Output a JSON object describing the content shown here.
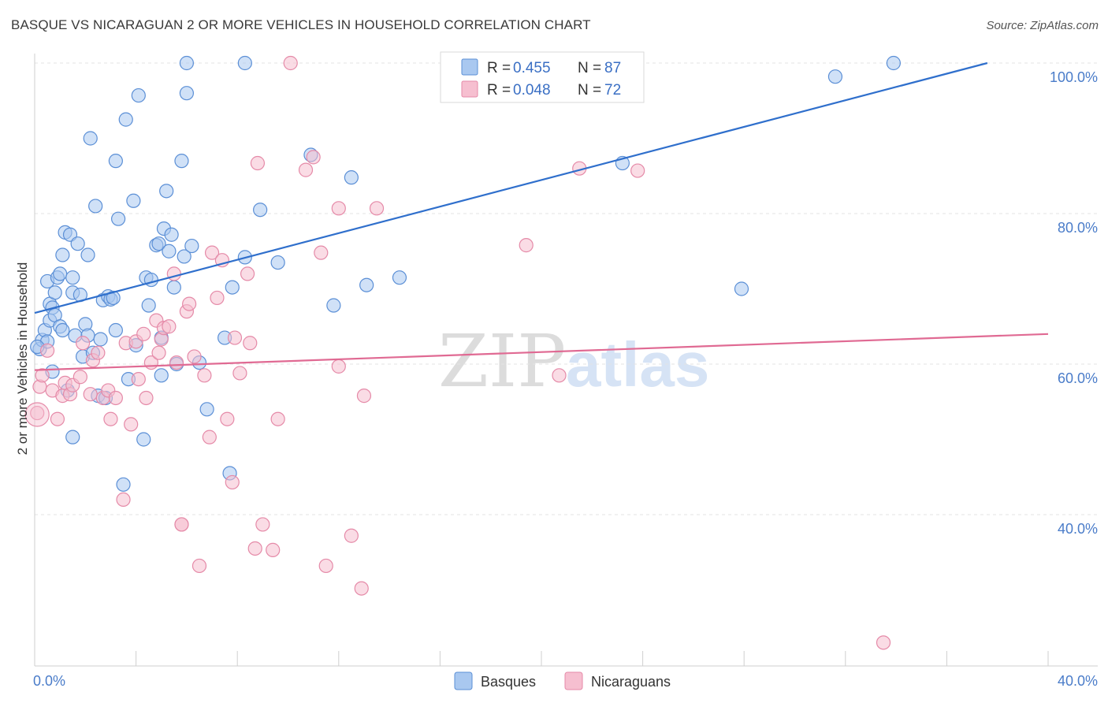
{
  "title": "BASQUE VS NICARAGUAN 2 OR MORE VEHICLES IN HOUSEHOLD CORRELATION CHART",
  "source": "Source: ZipAtlas.com",
  "watermark": {
    "zip": "ZIP",
    "atlas": "atlas"
  },
  "legend": {
    "items": [
      {
        "r_label": "R =",
        "r_value": "0.455",
        "n_label": "N =",
        "n_value": "87",
        "color": "#a9c8f0",
        "stroke": "#5b8fd6"
      },
      {
        "r_label": "R =",
        "r_value": "0.048",
        "n_label": "N =",
        "n_value": "72",
        "color": "#f6bfd0",
        "stroke": "#e58aa8"
      }
    ]
  },
  "chart_data": {
    "type": "scatter",
    "title": "BASQUE VS NICARAGUAN 2 OR MORE VEHICLES IN HOUSEHOLD CORRELATION CHART",
    "xlabel": "",
    "ylabel": "2 or more Vehicles in Household",
    "xlim": [
      0,
      40
    ],
    "ylim": [
      20,
      102
    ],
    "x_tick_labels": [
      "0.0%",
      "40.0%"
    ],
    "y_ticks": [
      40,
      60,
      80,
      100
    ],
    "y_tick_labels": [
      "40.0%",
      "60.0%",
      "80.0%",
      "100.0%"
    ],
    "grid": true,
    "series": [
      {
        "name": "Basques",
        "color": "#a9c8f0",
        "stroke": "#5b8fd6",
        "line_color": "#2f6fcc",
        "trend": {
          "x": [
            0,
            37.6
          ],
          "y": [
            66.8,
            100
          ]
        },
        "points": [
          [
            0.2,
            62.0
          ],
          [
            0.3,
            63.2
          ],
          [
            0.4,
            64.5
          ],
          [
            0.5,
            63.0
          ],
          [
            0.5,
            71.0
          ],
          [
            0.6,
            65.8
          ],
          [
            0.6,
            68.0
          ],
          [
            0.7,
            59.0
          ],
          [
            0.7,
            67.5
          ],
          [
            0.8,
            66.5
          ],
          [
            0.8,
            69.5
          ],
          [
            0.9,
            71.5
          ],
          [
            1.0,
            65.0
          ],
          [
            1.0,
            72.0
          ],
          [
            1.1,
            64.5
          ],
          [
            1.1,
            74.5
          ],
          [
            1.2,
            77.5
          ],
          [
            1.3,
            56.5
          ],
          [
            1.4,
            77.2
          ],
          [
            1.5,
            69.5
          ],
          [
            1.5,
            71.5
          ],
          [
            1.6,
            63.8
          ],
          [
            1.7,
            76.0
          ],
          [
            1.8,
            69.2
          ],
          [
            1.9,
            61.0
          ],
          [
            2.0,
            65.3
          ],
          [
            2.1,
            63.8
          ],
          [
            2.1,
            74.5
          ],
          [
            2.2,
            90.0
          ],
          [
            2.3,
            61.5
          ],
          [
            2.4,
            81.0
          ],
          [
            2.5,
            55.8
          ],
          [
            2.6,
            63.3
          ],
          [
            2.7,
            68.5
          ],
          [
            2.8,
            55.5
          ],
          [
            2.9,
            69.0
          ],
          [
            3.0,
            68.6
          ],
          [
            3.1,
            68.8
          ],
          [
            3.2,
            64.5
          ],
          [
            3.2,
            87.0
          ],
          [
            3.3,
            79.3
          ],
          [
            3.5,
            44.0
          ],
          [
            3.6,
            92.5
          ],
          [
            3.9,
            81.7
          ],
          [
            4.0,
            62.5
          ],
          [
            4.1,
            95.7
          ],
          [
            4.3,
            50.0
          ],
          [
            4.4,
            71.5
          ],
          [
            4.5,
            67.8
          ],
          [
            4.6,
            71.2
          ],
          [
            4.8,
            75.8
          ],
          [
            4.9,
            76.0
          ],
          [
            5.0,
            63.5
          ],
          [
            5.0,
            58.5
          ],
          [
            5.1,
            78.0
          ],
          [
            5.2,
            83.0
          ],
          [
            5.3,
            75.0
          ],
          [
            5.4,
            77.2
          ],
          [
            5.5,
            70.2
          ],
          [
            5.6,
            60.0
          ],
          [
            5.8,
            87.0
          ],
          [
            5.9,
            74.3
          ],
          [
            6.0,
            96.0
          ],
          [
            6.0,
            100.0
          ],
          [
            6.2,
            75.7
          ],
          [
            6.5,
            60.2
          ],
          [
            6.8,
            54.0
          ],
          [
            7.5,
            63.5
          ],
          [
            7.7,
            45.5
          ],
          [
            7.8,
            70.2
          ],
          [
            8.3,
            74.2
          ],
          [
            8.3,
            100.0
          ],
          [
            8.9,
            80.5
          ],
          [
            9.6,
            73.5
          ],
          [
            10.9,
            87.8
          ],
          [
            11.8,
            67.8
          ],
          [
            12.5,
            84.8
          ],
          [
            13.1,
            70.5
          ],
          [
            14.4,
            71.5
          ],
          [
            20.9,
            100.0
          ],
          [
            23.2,
            86.7
          ],
          [
            27.9,
            70.0
          ],
          [
            31.6,
            98.2
          ],
          [
            33.9,
            100.0
          ],
          [
            0.1,
            62.3
          ],
          [
            1.5,
            50.3
          ],
          [
            3.7,
            58.0
          ]
        ]
      },
      {
        "name": "Nicaraguans",
        "color": "#f6bfd0",
        "stroke": "#e58aa8",
        "line_color": "#e06a93",
        "trend": {
          "x": [
            0,
            40
          ],
          "y": [
            59.2,
            64.0
          ]
        },
        "points": [
          [
            0.1,
            53.5
          ],
          [
            0.2,
            57.0
          ],
          [
            0.3,
            58.5
          ],
          [
            0.5,
            61.8
          ],
          [
            0.7,
            56.5
          ],
          [
            0.9,
            52.7
          ],
          [
            1.1,
            55.8
          ],
          [
            1.2,
            57.5
          ],
          [
            1.4,
            56.0
          ],
          [
            1.5,
            57.2
          ],
          [
            1.8,
            58.3
          ],
          [
            1.9,
            62.8
          ],
          [
            2.2,
            56.0
          ],
          [
            2.3,
            60.5
          ],
          [
            2.5,
            61.5
          ],
          [
            2.7,
            55.5
          ],
          [
            2.9,
            56.5
          ],
          [
            3.0,
            52.7
          ],
          [
            3.2,
            55.5
          ],
          [
            3.5,
            42.0
          ],
          [
            3.6,
            62.8
          ],
          [
            3.8,
            52.0
          ],
          [
            4.0,
            63.0
          ],
          [
            4.1,
            58.0
          ],
          [
            4.3,
            64.0
          ],
          [
            4.4,
            55.5
          ],
          [
            4.6,
            60.2
          ],
          [
            4.8,
            65.8
          ],
          [
            4.9,
            61.5
          ],
          [
            5.0,
            63.3
          ],
          [
            5.1,
            64.8
          ],
          [
            5.3,
            65.0
          ],
          [
            5.5,
            72.0
          ],
          [
            5.6,
            60.2
          ],
          [
            5.8,
            38.7
          ],
          [
            6.0,
            67.0
          ],
          [
            6.1,
            68.0
          ],
          [
            6.3,
            61.0
          ],
          [
            6.5,
            33.2
          ],
          [
            6.7,
            58.5
          ],
          [
            6.9,
            50.3
          ],
          [
            7.0,
            74.8
          ],
          [
            7.2,
            68.8
          ],
          [
            7.4,
            73.8
          ],
          [
            7.6,
            52.7
          ],
          [
            7.8,
            44.3
          ],
          [
            7.9,
            63.5
          ],
          [
            8.1,
            58.8
          ],
          [
            8.4,
            72.0
          ],
          [
            8.5,
            62.8
          ],
          [
            8.7,
            35.5
          ],
          [
            8.8,
            86.7
          ],
          [
            9.0,
            38.7
          ],
          [
            9.4,
            35.3
          ],
          [
            9.6,
            52.7
          ],
          [
            10.1,
            100.0
          ],
          [
            10.7,
            85.8
          ],
          [
            11.0,
            87.5
          ],
          [
            11.3,
            74.8
          ],
          [
            11.5,
            33.2
          ],
          [
            12.0,
            80.7
          ],
          [
            12.0,
            59.7
          ],
          [
            12.5,
            37.2
          ],
          [
            12.9,
            30.2
          ],
          [
            13.0,
            55.8
          ],
          [
            13.5,
            80.7
          ],
          [
            19.4,
            75.8
          ],
          [
            20.7,
            58.5
          ],
          [
            21.5,
            86.0
          ],
          [
            23.8,
            85.7
          ],
          [
            33.5,
            23.0
          ],
          [
            5.8,
            38.7
          ]
        ]
      }
    ]
  }
}
